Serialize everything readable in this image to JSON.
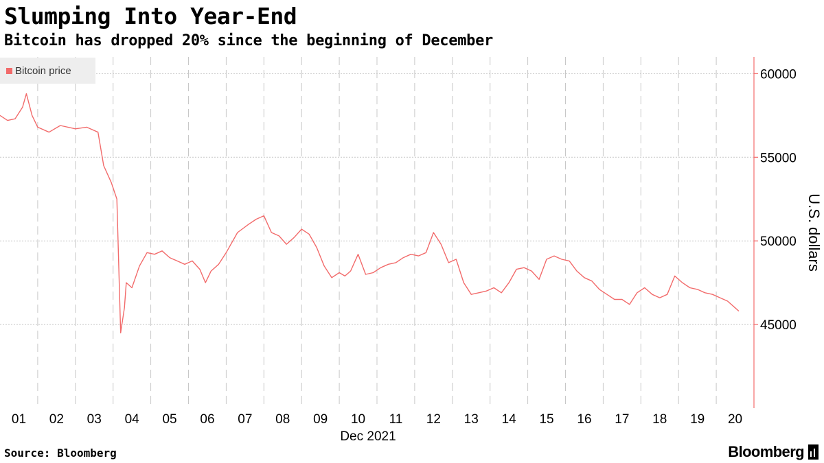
{
  "header": {
    "title": "Slumping Into Year-End",
    "subtitle": "Bitcoin has dropped 20% since the beginning of December"
  },
  "footer": {
    "source": "Source: Bloomberg",
    "brand": "Bloomberg"
  },
  "colors": {
    "series": "#f26b6b",
    "grid": "#c8c8c8",
    "axis": "#f26b6b",
    "legend_bg": "#eeeeee"
  },
  "chart_data": {
    "type": "line",
    "title": "Slumping Into Year-End",
    "subtitle": "Bitcoin has dropped 20% since the beginning of December",
    "xlabel": "Dec 2021",
    "ylabel": "U.S. dollars",
    "x_unit": "day of December 2021",
    "xlim": [
      1,
      21
    ],
    "ylim": [
      40000,
      61000
    ],
    "yticks": [
      45000,
      50000,
      55000,
      60000
    ],
    "ytick_labels": [
      "45000",
      "50000",
      "55000",
      "60000"
    ],
    "x_ticks": [
      {
        "label": "01",
        "value": 1.5
      },
      {
        "label": "02",
        "value": 2.5
      },
      {
        "label": "03",
        "value": 3.5
      },
      {
        "label": "04",
        "value": 4.5
      },
      {
        "label": "05",
        "value": 5.5
      },
      {
        "label": "06",
        "value": 6.5
      },
      {
        "label": "07",
        "value": 7.5
      },
      {
        "label": "08",
        "value": 8.5
      },
      {
        "label": "09",
        "value": 9.5
      },
      {
        "label": "10",
        "value": 10.5
      },
      {
        "label": "11",
        "value": 11.5
      },
      {
        "label": "12",
        "value": 12.5
      },
      {
        "label": "13",
        "value": 13.5
      },
      {
        "label": "14",
        "value": 14.5
      },
      {
        "label": "15",
        "value": 15.5
      },
      {
        "label": "16",
        "value": 16.5
      },
      {
        "label": "17",
        "value": 17.5
      },
      {
        "label": "18",
        "value": 18.5
      },
      {
        "label": "19",
        "value": 19.5
      },
      {
        "label": "20",
        "value": 20.5
      }
    ],
    "grid": true,
    "legend_position": "top-left",
    "series": [
      {
        "name": "Bitcoin price",
        "x": [
          1.0,
          1.2,
          1.4,
          1.6,
          1.7,
          1.85,
          2.0,
          2.3,
          2.6,
          3.0,
          3.3,
          3.6,
          3.75,
          3.95,
          4.1,
          4.2,
          4.3,
          4.35,
          4.5,
          4.7,
          4.9,
          5.1,
          5.3,
          5.5,
          5.7,
          5.9,
          6.1,
          6.3,
          6.45,
          6.6,
          6.8,
          7.0,
          7.3,
          7.6,
          7.8,
          8.0,
          8.2,
          8.4,
          8.6,
          8.8,
          9.0,
          9.2,
          9.4,
          9.6,
          9.8,
          10.0,
          10.15,
          10.3,
          10.5,
          10.7,
          10.9,
          11.1,
          11.3,
          11.5,
          11.7,
          11.9,
          12.1,
          12.3,
          12.5,
          12.7,
          12.9,
          13.1,
          13.3,
          13.5,
          13.7,
          13.9,
          14.1,
          14.3,
          14.5,
          14.7,
          14.9,
          15.1,
          15.3,
          15.5,
          15.7,
          15.9,
          16.1,
          16.3,
          16.5,
          16.7,
          16.9,
          17.1,
          17.3,
          17.5,
          17.7,
          17.9,
          18.1,
          18.3,
          18.5,
          18.7,
          18.9,
          19.1,
          19.3,
          19.5,
          19.7,
          19.9,
          20.1,
          20.3,
          20.5,
          20.6
        ],
        "y": [
          57500,
          57200,
          57300,
          58000,
          58800,
          57500,
          56800,
          56500,
          56900,
          56700,
          56800,
          56500,
          54500,
          53500,
          52500,
          44500,
          46000,
          47500,
          47200,
          48500,
          49300,
          49200,
          49400,
          49000,
          48800,
          48600,
          48800,
          48300,
          47500,
          48200,
          48600,
          49300,
          50500,
          51000,
          51300,
          51500,
          50500,
          50300,
          49800,
          50200,
          50700,
          50400,
          49600,
          48500,
          47800,
          48100,
          47900,
          48200,
          49200,
          48000,
          48100,
          48400,
          48600,
          48700,
          49000,
          49200,
          49100,
          49300,
          50500,
          49800,
          48700,
          48900,
          47500,
          46800,
          46900,
          47000,
          47200,
          46900,
          47500,
          48300,
          48400,
          48200,
          47700,
          48900,
          49100,
          48900,
          48800,
          48200,
          47800,
          47600,
          47100,
          46800,
          46500,
          46500,
          46200,
          46900,
          47200,
          46800,
          46600,
          46800,
          47900,
          47500,
          47200,
          47100,
          46900,
          46800,
          46600,
          46400,
          46000,
          45800
        ]
      }
    ]
  }
}
